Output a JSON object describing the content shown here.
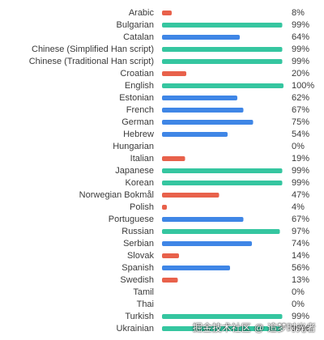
{
  "chart_data": {
    "type": "bar",
    "orientation": "horizontal",
    "categories": [
      "Arabic",
      "Bulgarian",
      "Catalan",
      "Chinese (Simplified Han script)",
      "Chinese (Traditional Han script)",
      "Croatian",
      "English",
      "Estonian",
      "French",
      "German",
      "Hebrew",
      "Hungarian",
      "Italian",
      "Japanese",
      "Korean",
      "Norwegian Bokmål",
      "Polish",
      "Portuguese",
      "Russian",
      "Serbian",
      "Slovak",
      "Spanish",
      "Swedish",
      "Tamil",
      "Thai",
      "Turkish",
      "Ukrainian"
    ],
    "values": [
      8,
      99,
      64,
      99,
      99,
      20,
      100,
      62,
      67,
      75,
      54,
      0,
      19,
      99,
      99,
      47,
      4,
      67,
      97,
      74,
      14,
      56,
      13,
      0,
      0,
      99,
      99
    ],
    "value_labels": [
      "8%",
      "99%",
      "64%",
      "99%",
      "99%",
      "20%",
      "100%",
      "62%",
      "67%",
      "75%",
      "54%",
      "0%",
      "19%",
      "99%",
      "99%",
      "47%",
      "4%",
      "67%",
      "97%",
      "74%",
      "14%",
      "56%",
      "13%",
      "0%",
      "0%",
      "99%",
      "99%"
    ],
    "xlim": [
      0,
      100
    ],
    "color_thresholds": {
      "low_below": 50,
      "high_from": 90
    },
    "colors": {
      "low": "#e8614b",
      "mid": "#3f86e6",
      "high": "#35c6a0"
    },
    "title": "",
    "xlabel": "",
    "ylabel": "",
    "grid": false,
    "legend": "none"
  },
  "watermark": {
    "text": "掘金技术社区",
    "handle_prefix": "@",
    "handle": "追梦时光者"
  }
}
